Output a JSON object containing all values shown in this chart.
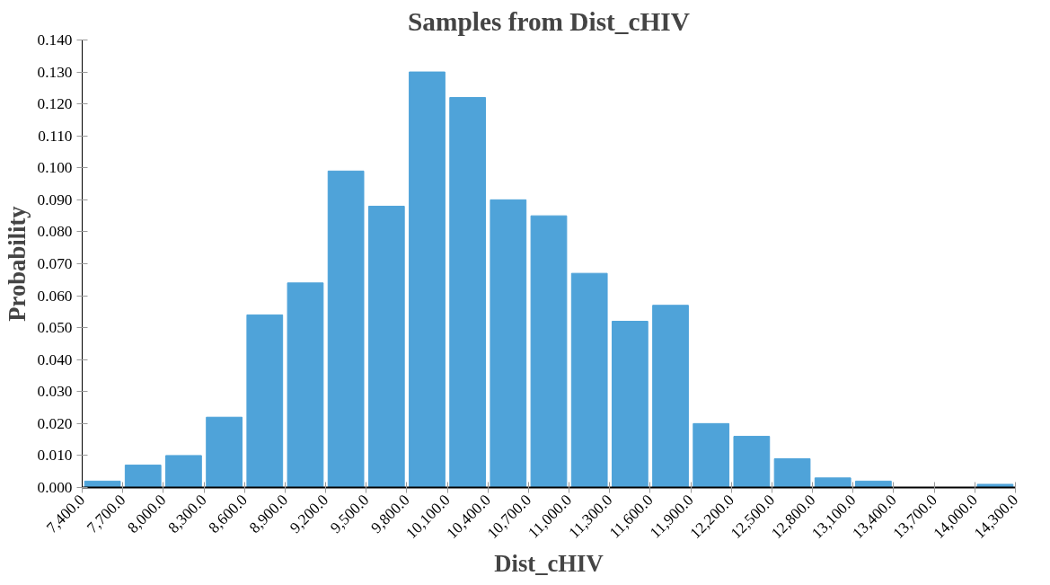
{
  "chart_data": {
    "type": "histogram",
    "title": "Samples from Dist_cHIV",
    "xlabel": "Dist_cHIV",
    "ylabel": "Probability",
    "color": "#4fa3d9",
    "bins": [
      7400,
      7700,
      8000,
      8300,
      8600,
      8900,
      9200,
      9500,
      9800,
      10100,
      10400,
      10700,
      11000,
      11300,
      11600,
      11900,
      12200,
      12500,
      12800,
      13100,
      13400,
      13700,
      14000,
      14300
    ],
    "values": [
      0.002,
      0.007,
      0.01,
      0.022,
      0.054,
      0.064,
      0.099,
      0.088,
      0.13,
      0.122,
      0.09,
      0.085,
      0.067,
      0.052,
      0.057,
      0.02,
      0.016,
      0.009,
      0.003,
      0.002,
      0,
      0,
      0.001
    ],
    "xlim": [
      7400,
      14300
    ],
    "xticks": [
      {
        "value": 7400,
        "label": "7,400.0"
      },
      {
        "value": 7700,
        "label": "7,700.0"
      },
      {
        "value": 8000,
        "label": "8,000.0"
      },
      {
        "value": 8300,
        "label": "8,300.0"
      },
      {
        "value": 8600,
        "label": "8,600.0"
      },
      {
        "value": 8900,
        "label": "8,900.0"
      },
      {
        "value": 9200,
        "label": "9,200.0"
      },
      {
        "value": 9500,
        "label": "9,500.0"
      },
      {
        "value": 9800,
        "label": "9,800.0"
      },
      {
        "value": 10100,
        "label": "10,100.0"
      },
      {
        "value": 10400,
        "label": "10,400.0"
      },
      {
        "value": 10700,
        "label": "10,700.0"
      },
      {
        "value": 11000,
        "label": "11,000.0"
      },
      {
        "value": 11300,
        "label": "11,300.0"
      },
      {
        "value": 11600,
        "label": "11,600.0"
      },
      {
        "value": 11900,
        "label": "11,900.0"
      },
      {
        "value": 12200,
        "label": "12,200.0"
      },
      {
        "value": 12500,
        "label": "12,500.0"
      },
      {
        "value": 12800,
        "label": "12,800.0"
      },
      {
        "value": 13100,
        "label": "13,100.0"
      },
      {
        "value": 13400,
        "label": "13,400.0"
      },
      {
        "value": 13700,
        "label": "13,700.0"
      },
      {
        "value": 14000,
        "label": "14,000.0"
      },
      {
        "value": 14300,
        "label": "14,300.0"
      }
    ],
    "ylim": [
      0,
      0.14
    ],
    "yticks": [
      {
        "value": 0,
        "label": "0.000"
      },
      {
        "value": 0.01,
        "label": "0.010"
      },
      {
        "value": 0.02,
        "label": "0.020"
      },
      {
        "value": 0.03,
        "label": "0.030"
      },
      {
        "value": 0.04,
        "label": "0.040"
      },
      {
        "value": 0.05,
        "label": "0.050"
      },
      {
        "value": 0.06,
        "label": "0.060"
      },
      {
        "value": 0.07,
        "label": "0.070"
      },
      {
        "value": 0.08,
        "label": "0.080"
      },
      {
        "value": 0.09,
        "label": "0.090"
      },
      {
        "value": 0.1,
        "label": "0.100"
      },
      {
        "value": 0.11,
        "label": "0.110"
      },
      {
        "value": 0.12,
        "label": "0.120"
      },
      {
        "value": 0.13,
        "label": "0.130"
      },
      {
        "value": 0.14,
        "label": "0.140"
      }
    ],
    "grid": false
  }
}
